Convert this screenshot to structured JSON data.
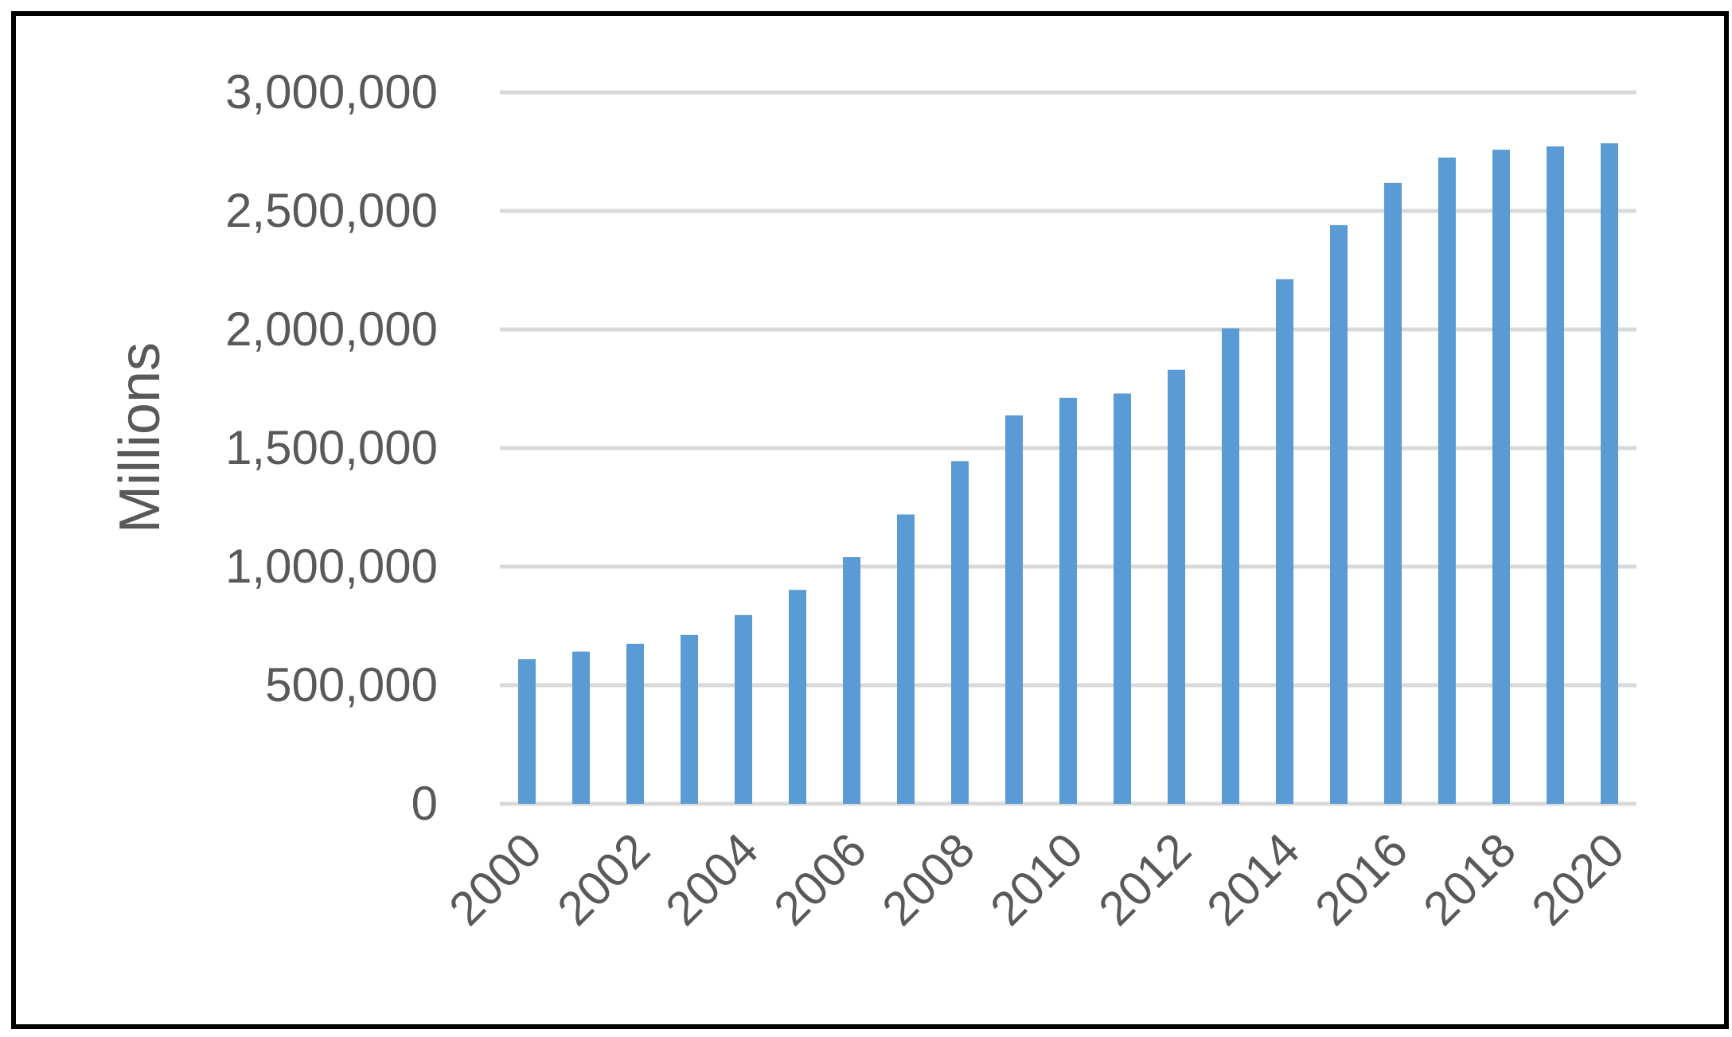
{
  "chart_data": {
    "type": "bar",
    "title": "",
    "xlabel": "",
    "ylabel": "Millions",
    "ylim": [
      0,
      3000000
    ],
    "yticks": [
      0,
      500000,
      1000000,
      1500000,
      2000000,
      2500000,
      3000000
    ],
    "ytick_labels": [
      "0",
      "500,000",
      "1,000,000",
      "1,500,000",
      "2,000,000",
      "2,500,000",
      "3,000,000"
    ],
    "xtick_labels": [
      "2000",
      "2002",
      "2004",
      "2006",
      "2008",
      "2010",
      "2012",
      "2014",
      "2016",
      "2018",
      "2020"
    ],
    "grid": "horizontal",
    "legend": "none",
    "colors": {
      "bar": "#5b9bd5",
      "grid": "#d9d9d9",
      "text": "#595959",
      "frame": "#000000"
    },
    "categories": [
      "2000",
      "2001",
      "2002",
      "2003",
      "2004",
      "2005",
      "2006",
      "2007",
      "2008",
      "2009",
      "2010",
      "2011",
      "2012",
      "2013",
      "2014",
      "2015",
      "2016",
      "2017",
      "2018",
      "2019",
      "2020"
    ],
    "series": [
      {
        "values": [
          610000,
          642000,
          675000,
          712000,
          796000,
          902000,
          1040000,
          1220000,
          1445000,
          1638000,
          1712000,
          1730000,
          1830000,
          2005000,
          2212000,
          2440000,
          2618000,
          2725000,
          2758000,
          2772000,
          2785000
        ]
      }
    ]
  }
}
